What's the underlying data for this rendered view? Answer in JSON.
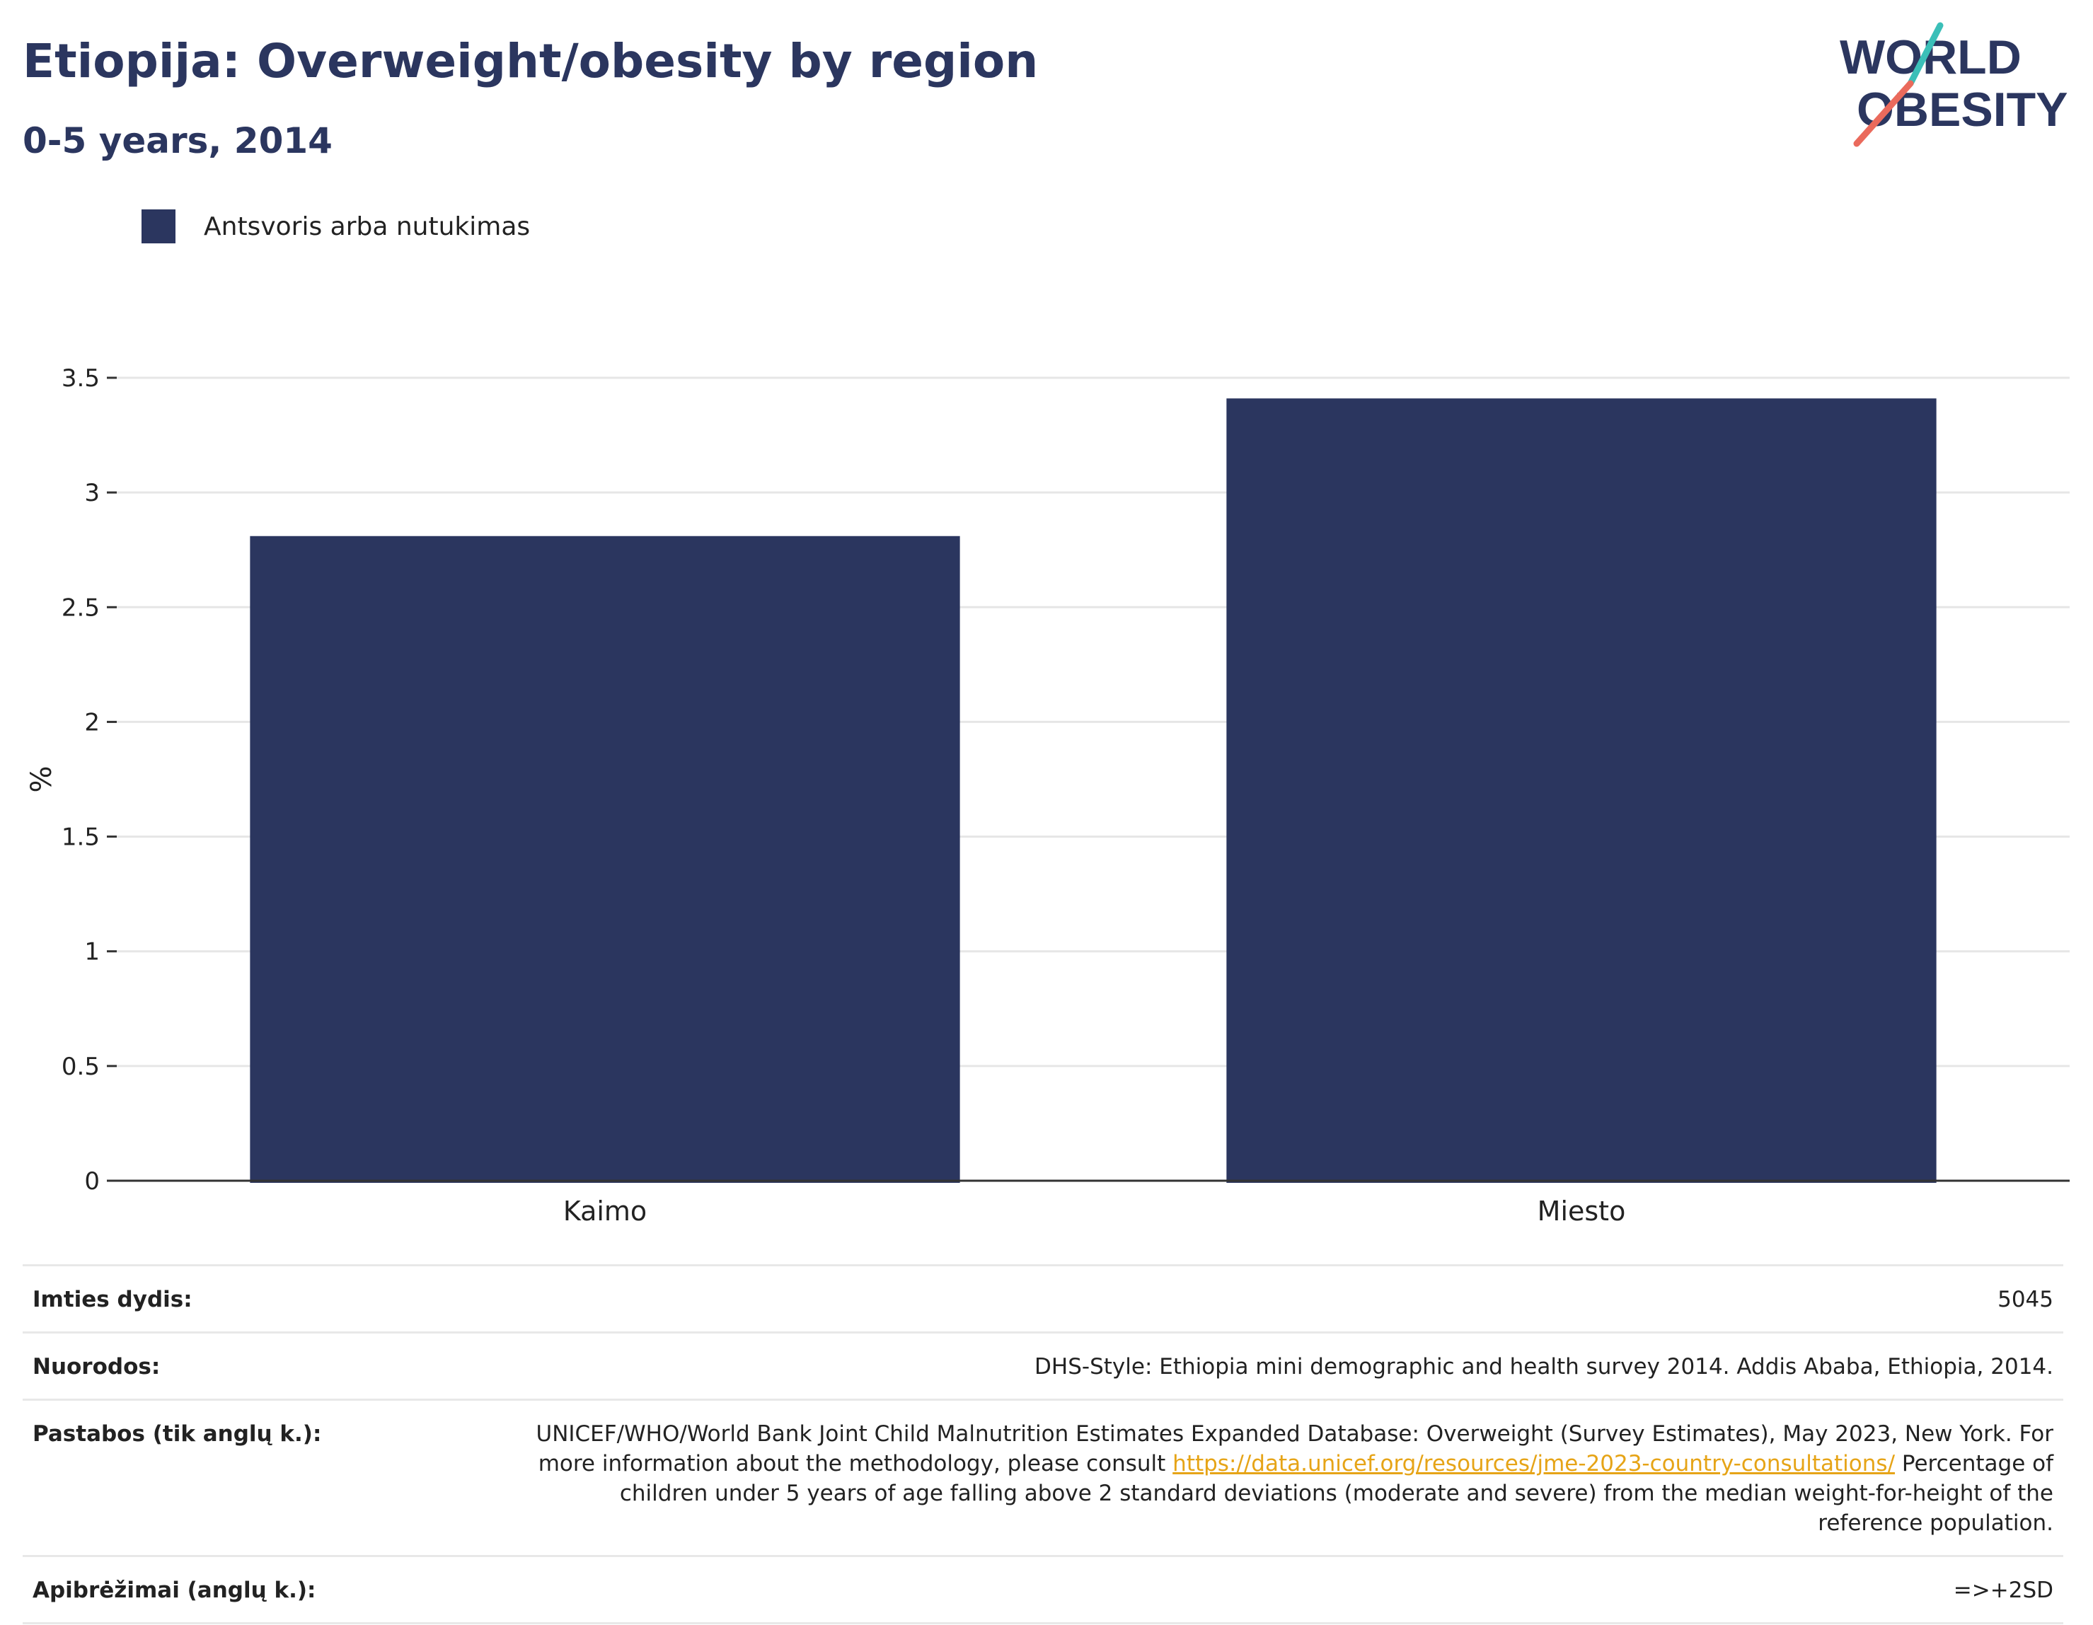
{
  "header": {
    "title": "Etiopija: Overweight/obesity by region",
    "subtitle": "0-5 years, 2014"
  },
  "logo": {
    "line1": "WORLD",
    "line2": "OBESITY",
    "colors": {
      "navy": "#2b365f",
      "teal": "#3bbfb8",
      "coral": "#ea6a5c"
    }
  },
  "legend": {
    "label": "Antsvoris arba nutukimas",
    "color": "#2b365f"
  },
  "chart_data": {
    "type": "bar",
    "categories": [
      "Kaimo",
      "Miesto"
    ],
    "series": [
      {
        "name": "Antsvoris arba nutukimas",
        "values": [
          2.81,
          3.41
        ],
        "color": "#2b365f"
      }
    ],
    "ylabel": "%",
    "xlabel": "",
    "ylim": [
      0,
      3.5
    ],
    "yticks": [
      "0",
      "0.5",
      "1",
      "1.5",
      "2",
      "2.5",
      "3",
      "3.5"
    ],
    "grid": true,
    "legend_position": "top-left"
  },
  "info": {
    "sample_size_label": "Imties dydis:",
    "sample_size_value": "5045",
    "references_label": "Nuorodos:",
    "references_value": "DHS-Style: Ethiopia mini demographic and health survey 2014. Addis Ababa, Ethiopia, 2014.",
    "notes_label": "Pastabos (tik anglų k.):",
    "notes_text_1": "UNICEF/WHO/World Bank Joint Child Malnutrition Estimates Expanded Database: Overweight (Survey Estimates), May 2023, New York. For more information about the methodology, please consult",
    "notes_link": "https://data.unicef.org/resources/jme-2023-country-consultations/",
    "notes_text_2": "Percentage of children under 5 years of age falling above 2 standard deviations (moderate and severe) from the median weight-for-height of the reference population.",
    "definitions_label": "Apibrėžimai (anglų k.):",
    "definitions_value": "=>+2SD"
  }
}
